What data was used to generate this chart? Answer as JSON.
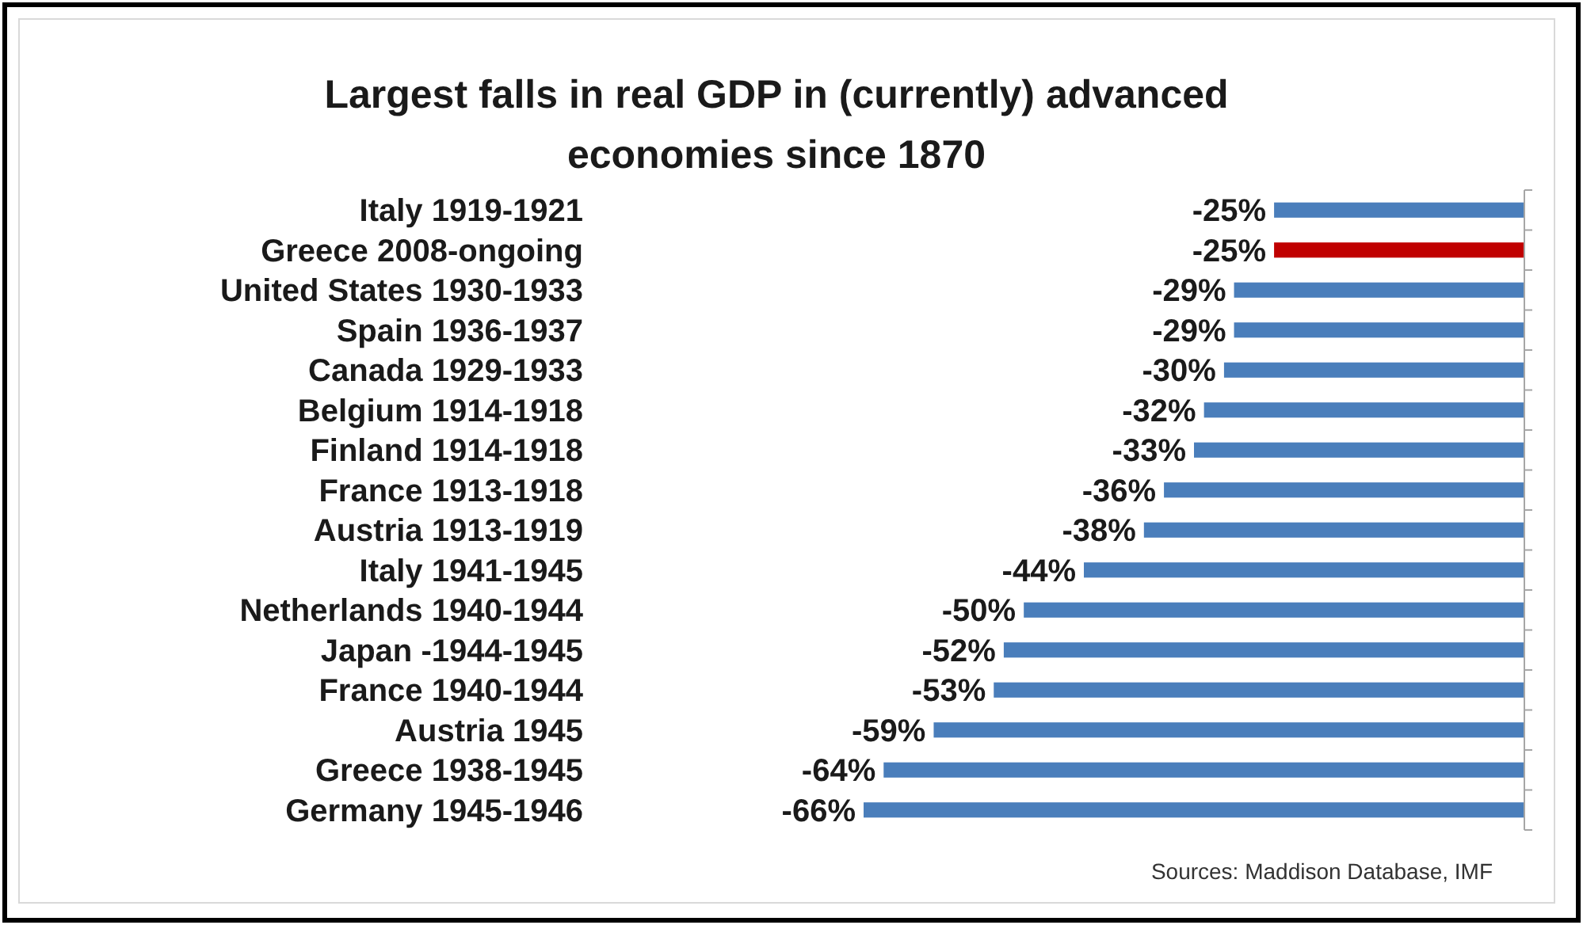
{
  "chart_data": {
    "type": "bar",
    "orientation": "horizontal",
    "title": "Largest falls in real GDP in (currently) advanced economies since 1870",
    "categories": [
      "Italy 1919-1921",
      "Greece 2008-ongoing",
      "United States 1930-1933",
      "Spain 1936-1937",
      "Canada 1929-1933",
      "Belgium 1914-1918",
      "Finland 1914-1918",
      "France 1913-1918",
      "Austria 1913-1919",
      "Italy 1941-1945",
      "Netherlands 1940-1944",
      "Japan -1944-1945",
      "France 1940-1944",
      "Austria 1945",
      "Greece 1938-1945",
      "Germany 1945-1946"
    ],
    "values": [
      -25,
      -25,
      -29,
      -29,
      -30,
      -32,
      -33,
      -36,
      -38,
      -44,
      -50,
      -52,
      -53,
      -59,
      -64,
      -66
    ],
    "value_labels": [
      "-25%",
      "-25%",
      "-29%",
      "-29%",
      "-30%",
      "-32%",
      "-33%",
      "-36%",
      "-38%",
      "-44%",
      "-50%",
      "-52%",
      "-53%",
      "-59%",
      "-64%",
      "-66%"
    ],
    "colors": [
      "#4a7ebb",
      "#c00000",
      "#4a7ebb",
      "#4a7ebb",
      "#4a7ebb",
      "#4a7ebb",
      "#4a7ebb",
      "#4a7ebb",
      "#4a7ebb",
      "#4a7ebb",
      "#4a7ebb",
      "#4a7ebb",
      "#4a7ebb",
      "#4a7ebb",
      "#4a7ebb",
      "#4a7ebb"
    ],
    "tick_labels": "y",
    "annotations": [
      "Sources: Maddison Database, IMF"
    ]
  }
}
